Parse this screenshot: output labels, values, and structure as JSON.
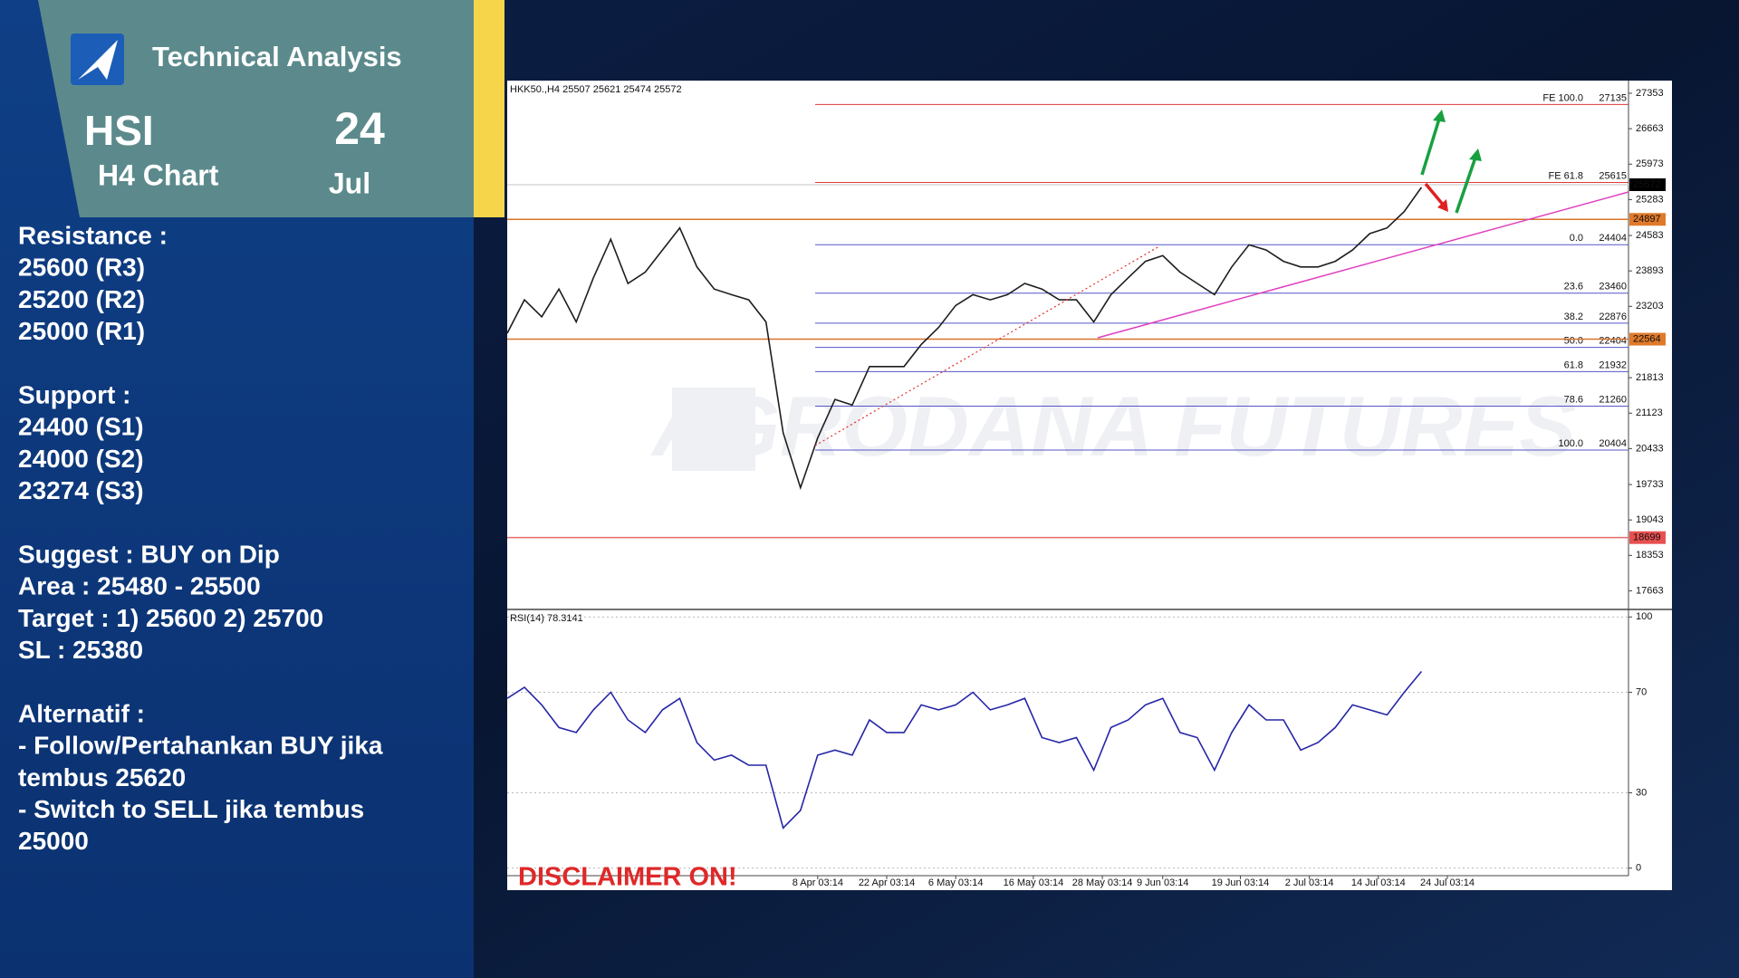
{
  "header": {
    "title": "Technical Analysis",
    "symbol": "HSI",
    "timeframe": "H4 Chart",
    "day": "24",
    "month": "Jul"
  },
  "notes": [
    [
      "Resistance :",
      "25600 (R3)",
      "25200 (R2)",
      "25000 (R1)"
    ],
    [
      "Support :",
      "24400 (S1)",
      "24000 (S2)",
      "23274 (S3)"
    ],
    [
      "Suggest :  BUY on Dip",
      "Area : 25480 - 25500",
      "Target : 1) 25600 2) 25700",
      "SL : 25380"
    ],
    [
      "Alternatif :",
      "- Follow/Pertahankan BUY jika",
      "tembus 25620",
      "- Switch to SELL jika tembus",
      "25000"
    ]
  ],
  "disclaimer": "DISCLAIMER ON!",
  "watermark": "AGRODANA FUTURES",
  "chart_data": [
    {
      "type": "line",
      "title": "HKK50.,H4 25507 25621 25474 25572",
      "x": [
        0,
        2,
        4,
        6,
        8,
        10,
        12,
        14,
        16,
        18,
        20,
        22,
        24,
        26,
        28,
        30,
        32,
        34,
        36,
        38,
        40,
        42,
        44,
        46,
        48,
        50,
        52,
        54,
        56,
        58,
        60,
        62,
        64,
        66,
        68,
        70,
        72,
        74,
        76,
        78,
        80,
        82,
        84,
        86,
        88,
        90,
        92,
        94,
        96,
        98,
        100,
        102,
        104,
        106
      ],
      "values": [
        22680,
        23330,
        23000,
        23540,
        22900,
        23760,
        24510,
        23650,
        23870,
        24300,
        24730,
        23970,
        23540,
        23430,
        23330,
        22900,
        20740,
        19670,
        20640,
        21390,
        21280,
        22030,
        22030,
        22030,
        22460,
        22790,
        23220,
        23430,
        23330,
        23430,
        23650,
        23540,
        23330,
        23330,
        22900,
        23430,
        23760,
        24080,
        24190,
        23870,
        23650,
        23430,
        23970,
        24400,
        24300,
        24080,
        23970,
        23970,
        24080,
        24300,
        24620,
        24730,
        25050,
        25520
      ],
      "color": "#1e1e1e",
      "xlim": [
        0,
        130
      ],
      "ylim": [
        17300,
        27600
      ],
      "yticks": [
        27353,
        26663,
        25973,
        25283,
        24583,
        23893,
        23203,
        21813,
        21123,
        20433,
        19733,
        19043,
        18353,
        17663
      ],
      "levels": [
        {
          "label": "FE 100.0",
          "value": 27135,
          "color": "#e03a3a"
        },
        {
          "label": "FE 61.8",
          "value": 25615,
          "color": "#e03a3a"
        },
        {
          "label": "0.0",
          "value": 24404,
          "color": "#5656c8"
        },
        {
          "label": "23.6",
          "value": 23460,
          "color": "#5656c8"
        },
        {
          "label": "38.2",
          "value": 22876,
          "color": "#5656c8"
        },
        {
          "label": "50.0",
          "value": 22404,
          "color": "#5656c8"
        },
        {
          "label": "61.8",
          "value": 21932,
          "color": "#5656c8"
        },
        {
          "label": "78.6",
          "value": 21260,
          "color": "#5656c8"
        },
        {
          "label": "100.0",
          "value": 20404,
          "color": "#5656c8"
        }
      ],
      "markers": [
        {
          "value": 25572,
          "color": "#000000",
          "line_color": "#d8d8d8"
        },
        {
          "value": 24897,
          "color": "#e07a2a",
          "line_color": "#d9732a"
        },
        {
          "value": 22564,
          "color": "#e07a2a",
          "line_color": "#d9732a"
        },
        {
          "value": 18699,
          "color": "#e85050",
          "line_color": "#e86a6a"
        }
      ]
    },
    {
      "type": "line",
      "title": "RSI(14) 78.3141",
      "x": [
        0,
        2,
        4,
        6,
        8,
        10,
        12,
        14,
        16,
        18,
        20,
        22,
        24,
        26,
        28,
        30,
        32,
        34,
        36,
        38,
        40,
        42,
        44,
        46,
        48,
        50,
        52,
        54,
        56,
        58,
        60,
        62,
        64,
        66,
        68,
        70,
        72,
        74,
        76,
        78,
        80,
        82,
        84,
        86,
        88,
        90,
        92,
        94,
        96,
        98,
        100,
        102,
        104,
        106
      ],
      "values": [
        67.6,
        72,
        65,
        56,
        54,
        63,
        70,
        59,
        54,
        63,
        67.6,
        50,
        43,
        45,
        41,
        41,
        16,
        23,
        45,
        47,
        45,
        59,
        54,
        54,
        65,
        63,
        65,
        70,
        63,
        65,
        67.6,
        52,
        50,
        52,
        39,
        56,
        59,
        65,
        67.6,
        54,
        52,
        39,
        54,
        65,
        59,
        59,
        47,
        50,
        56,
        65,
        63,
        61,
        70,
        78.3141
      ],
      "color": "#2626a8",
      "xlim": [
        0,
        130
      ],
      "ylim": [
        -3,
        103
      ],
      "yticks": [
        100,
        70,
        30,
        0
      ],
      "grid": true,
      "xticks": [
        {
          "value": 36,
          "label": "8 Apr 03:14"
        },
        {
          "value": 44,
          "label": "22 Apr 03:14"
        },
        {
          "value": 52,
          "label": "6 May 03:14"
        },
        {
          "value": 61,
          "label": "16 May 03:14"
        },
        {
          "value": 69,
          "label": "28 May 03:14"
        },
        {
          "value": 76,
          "label": "9 Jun 03:14"
        },
        {
          "value": 85,
          "label": "19 Jun 03:14"
        },
        {
          "value": 93,
          "label": "2 Jul 03:14"
        },
        {
          "value": 101,
          "label": "14 Jul 03:14"
        },
        {
          "value": 109,
          "label": "24 Jul 03:14"
        }
      ]
    }
  ]
}
